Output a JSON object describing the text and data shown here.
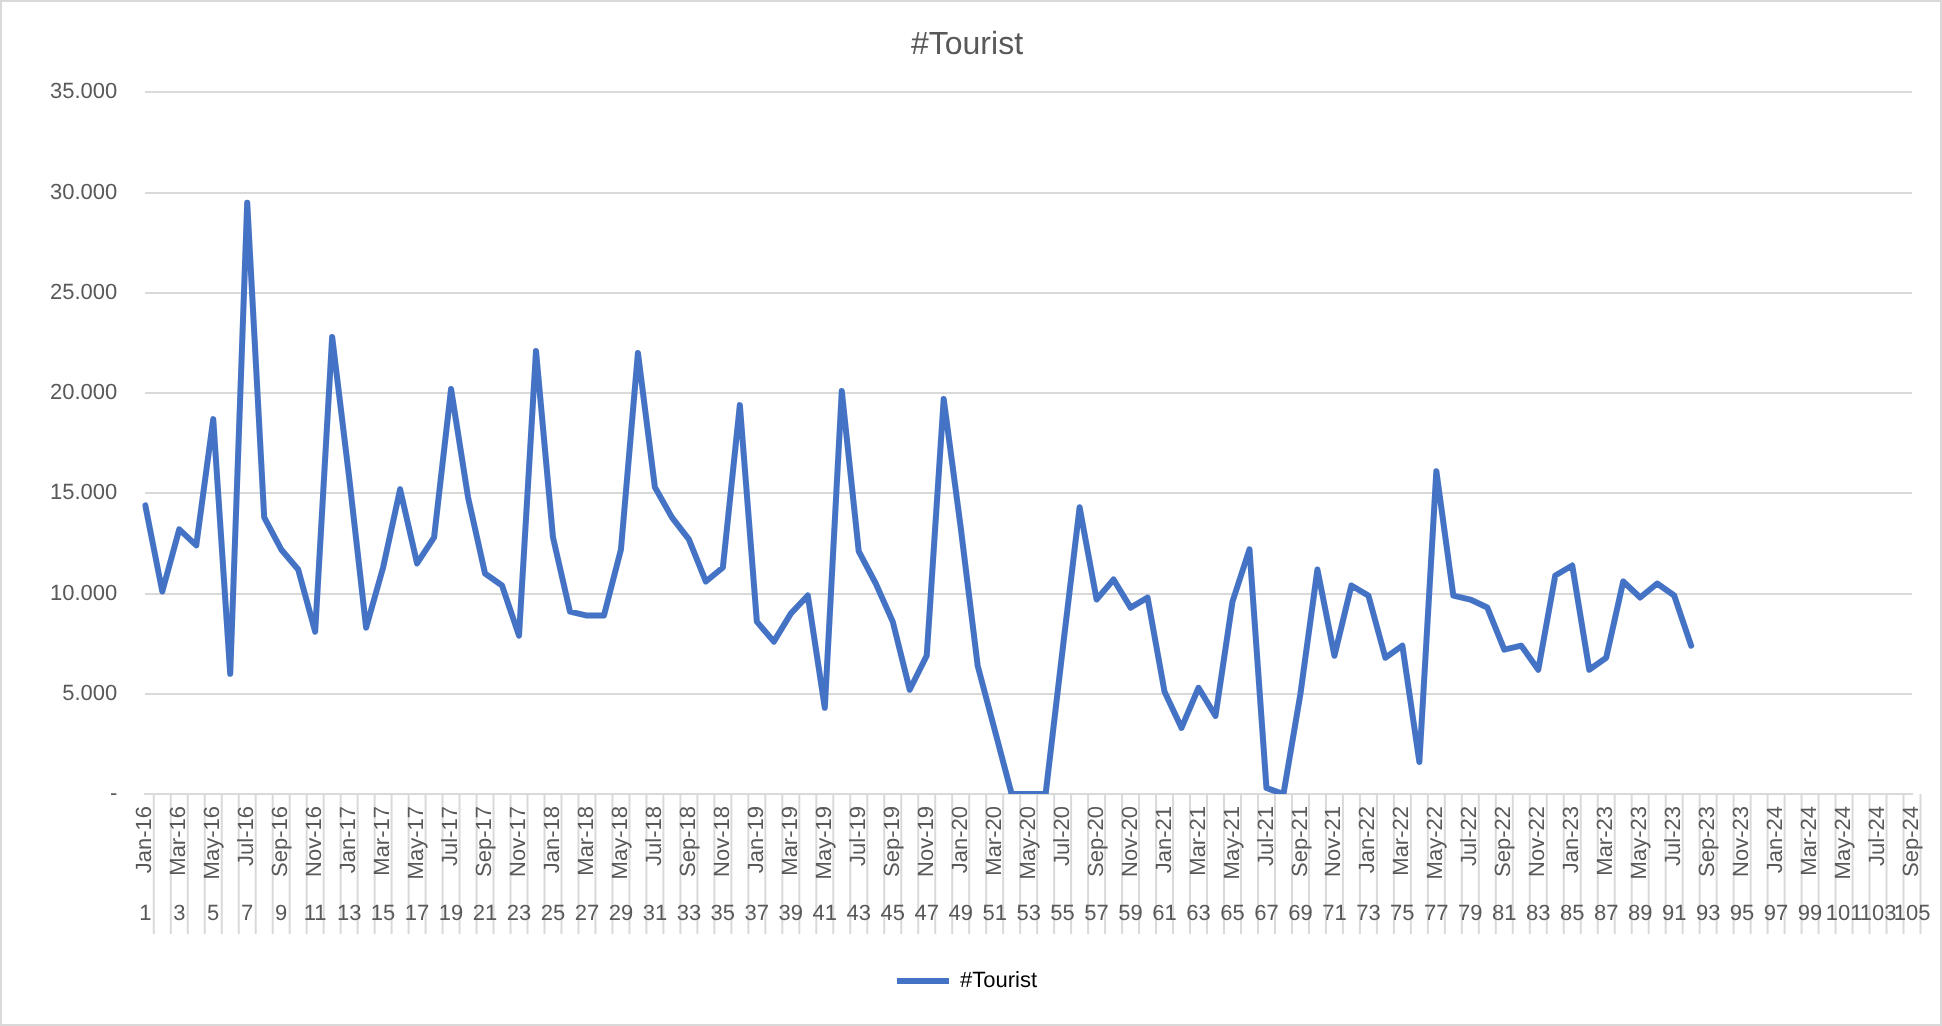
{
  "chart_data": {
    "type": "line",
    "title": "#Tourist",
    "categories": [
      "Jan-16\n1",
      null,
      "Mar-16\n3",
      null,
      "May-16\n5",
      null,
      "Jul-16\n7",
      null,
      "Sep-16\n9",
      null,
      "Nov-16\n11",
      null,
      "Jan-17\n13",
      null,
      "Mar-17\n15",
      null,
      "May-17\n17",
      null,
      "Jul-17\n19",
      null,
      "Sep-17\n21",
      null,
      "Nov-17\n23",
      null,
      "Jan-18\n25",
      null,
      "Mar-18\n27",
      null,
      "May-18\n29",
      null,
      "Jul-18\n31",
      null,
      "Sep-18\n33",
      null,
      "Nov-18\n35",
      null,
      "Jan-19\n37",
      null,
      "Mar-19\n39",
      null,
      "May-19\n41",
      null,
      "Jul-19\n43",
      null,
      "Sep-19\n45",
      null,
      "Nov-19\n47",
      null,
      "Jan-20\n49",
      null,
      "Mar-20\n51",
      null,
      "May-20\n53",
      null,
      "Jul-20\n55",
      null,
      "Sep-20\n57",
      null,
      "Nov-20\n59",
      null,
      "Jan-21\n61",
      null,
      "Mar-21\n63",
      null,
      "May-21\n65",
      null,
      "Jul-21\n67",
      null,
      "Sep-21\n69",
      null,
      "Nov-21\n71",
      null,
      "Jan-22\n73",
      null,
      "Mar-22\n75",
      null,
      "May-22\n77",
      null,
      "Jul-22\n79",
      null,
      "Sep-22\n81",
      null,
      "Nov-22\n83",
      null,
      "Jan-23\n85",
      null,
      "Mar-23\n87",
      null,
      "May-23\n89",
      null,
      "Jul-23\n91",
      null,
      "Sep-23\n93",
      null,
      "Nov-23\n95",
      null,
      "Jan-24\n97",
      null,
      "Mar-24\n99",
      null,
      "May-24\n101",
      null,
      "Jul-24\n103",
      null,
      "Sep-24\n105"
    ],
    "series": [
      {
        "name": "#Tourist",
        "color": "#4472c4",
        "values": [
          14400,
          10100,
          13200,
          12400,
          18700,
          6000,
          29500,
          13800,
          12200,
          11200,
          8100,
          22800,
          15800,
          8300,
          11300,
          15200,
          11500,
          12800,
          20200,
          14800,
          11000,
          10400,
          7900,
          22100,
          12800,
          9100,
          8900,
          8900,
          12200,
          22000,
          15300,
          13800,
          12700,
          10600,
          11300,
          19400,
          8600,
          7600,
          9000,
          9900,
          4300,
          20100,
          12100,
          10500,
          8600,
          5200,
          6900,
          19700,
          13300,
          6400,
          3200,
          0,
          0,
          0,
          7200,
          14300,
          9700,
          10700,
          9300,
          9800,
          5100,
          3300,
          5300,
          3900,
          9600,
          12200,
          300,
          0,
          5000,
          11200,
          6900,
          10400,
          9900,
          6800,
          7400,
          1600,
          16100,
          9900,
          9700,
          9300,
          7200,
          7400,
          6200,
          10900,
          11400,
          6200,
          6800,
          10600,
          9800,
          10500,
          9900,
          7400,
          null,
          null,
          null,
          null,
          null,
          null,
          null,
          null,
          null,
          null,
          null,
          null,
          null
        ]
      }
    ],
    "ylim": [
      0,
      35000
    ],
    "yticks": [
      {
        "value": 0,
        "label": "-"
      },
      {
        "value": 5000,
        "label": "5.000"
      },
      {
        "value": 10000,
        "label": "10.000"
      },
      {
        "value": 15000,
        "label": "15.000"
      },
      {
        "value": 20000,
        "label": "20.000"
      },
      {
        "value": 25000,
        "label": "25.000"
      },
      {
        "value": 30000,
        "label": "30.000"
      },
      {
        "value": 35000,
        "label": "35.000"
      }
    ],
    "grid": "y",
    "legend": "bottom",
    "marker": "none",
    "line_style": "solid"
  }
}
